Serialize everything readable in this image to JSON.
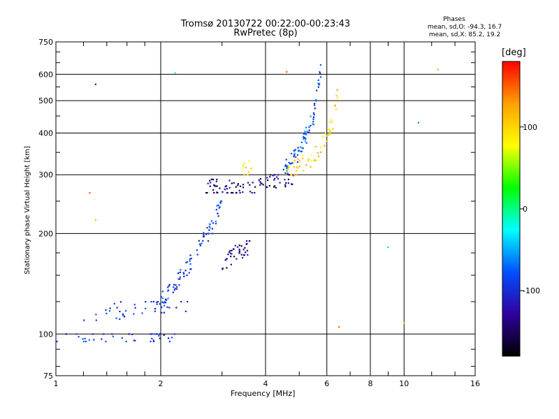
{
  "chart_data": {
    "type": "scatter",
    "title": "Tromsø 20130722 00:22:00-00:23:43",
    "subtitle": "RwPretec (8p)",
    "xlabel": "Frequency [MHz]",
    "ylabel": "Stationary phase Virtual Height [km]",
    "x_scale": "log",
    "y_scale": "log",
    "xlim": [
      1,
      16
    ],
    "ylim": [
      75,
      750
    ],
    "x_ticks": [
      1,
      2,
      4,
      6,
      8,
      10,
      16
    ],
    "y_ticks": [
      75,
      100,
      200,
      300,
      400,
      500,
      600,
      750
    ],
    "grid": true,
    "stats": {
      "heading": "Phases",
      "line_o": "mean, sd,O: -94.3, 16.7",
      "line_x": "mean, sd,X:  85.2, 19.2"
    },
    "colorbar": {
      "label": "[deg]",
      "ticks": [
        100,
        0,
        -100
      ],
      "range": [
        -180,
        180
      ],
      "colors": [
        "#ff0000",
        "#ffa000",
        "#ffff00",
        "#00ff00",
        "#00ffff",
        "#0050ff",
        "#3000a0",
        "#000000"
      ]
    },
    "series": [
      {
        "x_range": [
          1.0,
          2.2
        ],
        "y_range": [
          95,
          100
        ],
        "n": 40,
        "phase": -95,
        "anchors": [
          [
            1.0,
            97
          ],
          [
            1.5,
            98
          ],
          [
            2.2,
            98
          ]
        ]
      },
      {
        "x_range": [
          1.2,
          2.4
        ],
        "y_range": [
          110,
          125
        ],
        "n": 40,
        "phase": -100,
        "anchors": [
          [
            1.2,
            112
          ],
          [
            1.8,
            122
          ],
          [
            2.4,
            124
          ]
        ]
      },
      {
        "x_range": [
          2.0,
          3.0
        ],
        "y_range": [
          120,
          250
        ],
        "n": 90,
        "phase": -90,
        "anchors": [
          [
            2.0,
            125
          ],
          [
            2.4,
            160
          ],
          [
            2.8,
            210
          ],
          [
            3.0,
            250
          ]
        ]
      },
      {
        "x_range": [
          3.0,
          3.6
        ],
        "y_range": [
          150,
          190
        ],
        "n": 40,
        "phase": -140,
        "anchors": [
          [
            3.0,
            160
          ],
          [
            3.3,
            175
          ],
          [
            3.6,
            185
          ]
        ]
      },
      {
        "x_range": [
          2.7,
          5.0
        ],
        "y_range": [
          265,
          300
        ],
        "n": 90,
        "phase": -135,
        "anchors": [
          [
            2.7,
            280
          ],
          [
            3.3,
            270
          ],
          [
            4.0,
            285
          ],
          [
            5.0,
            300
          ]
        ]
      },
      {
        "x_range": [
          4.5,
          5.8
        ],
        "y_range": [
          300,
          640
        ],
        "n": 80,
        "phase": -80,
        "anchors": [
          [
            4.5,
            310
          ],
          [
            5.0,
            350
          ],
          [
            5.5,
            450
          ],
          [
            5.8,
            640
          ]
        ]
      },
      {
        "x_range": [
          4.6,
          6.5
        ],
        "y_range": [
          300,
          560
        ],
        "n": 60,
        "phase": 100,
        "anchors": [
          [
            4.6,
            305
          ],
          [
            5.5,
            340
          ],
          [
            6.2,
            420
          ],
          [
            6.5,
            560
          ]
        ]
      },
      {
        "x_range": [
          3.4,
          3.8
        ],
        "y_range": [
          300,
          330
        ],
        "n": 10,
        "phase": 90,
        "anchors": [
          [
            3.4,
            305
          ],
          [
            3.6,
            315
          ],
          [
            3.8,
            325
          ]
        ]
      }
    ],
    "scattered": [
      {
        "x": 1.3,
        "y": 560,
        "phase": -110
      },
      {
        "x": 2.2,
        "y": 605,
        "phase": -10
      },
      {
        "x": 4.6,
        "y": 610,
        "phase": 150
      },
      {
        "x": 12.5,
        "y": 620,
        "phase": 120
      },
      {
        "x": 11.0,
        "y": 430,
        "phase": -60
      },
      {
        "x": 9.0,
        "y": 182,
        "phase": -40
      },
      {
        "x": 6.5,
        "y": 105,
        "phase": 150
      },
      {
        "x": 10.0,
        "y": 108,
        "phase": 100
      },
      {
        "x": 1.25,
        "y": 265,
        "phase": 150
      },
      {
        "x": 1.3,
        "y": 220,
        "phase": 120
      }
    ]
  }
}
